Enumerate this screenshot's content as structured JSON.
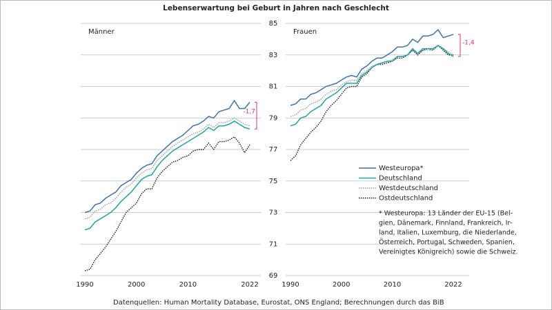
{
  "title": "Lebenserwartung bei Geburt in Jahren nach Geschlecht",
  "source": "Datenquellen: Human Mortality Database, Eurostat, ONS England; Berechnungen durch das BiB",
  "footnote": [
    "* Westeuropa: 13 Länder der EU-15 (Bel-",
    "gien, Dänemark, Finnland, Frankreich, Ir-",
    "land, Italien, Luxemburg, die Niederlande,",
    "Österreich, Portugal, Schweden, Spanien,",
    "Vereinigtes Königreich) sowie die Schweiz."
  ],
  "chart_data": [
    {
      "type": "line",
      "title": "Männer",
      "annotation": "-1,7",
      "x": [
        1990,
        1991,
        1992,
        1993,
        1994,
        1995,
        1996,
        1997,
        1998,
        1999,
        2000,
        2001,
        2002,
        2003,
        2004,
        2005,
        2006,
        2007,
        2008,
        2009,
        2010,
        2011,
        2012,
        2013,
        2014,
        2015,
        2016,
        2017,
        2018,
        2019,
        2020,
        2021,
        2022
      ],
      "xlim": [
        1990,
        2022
      ],
      "xticks": [
        1990,
        2000,
        2010,
        2022
      ],
      "ylim": [
        69,
        85
      ],
      "yticks": [
        69,
        71,
        73,
        75,
        77,
        79,
        81,
        83,
        85
      ],
      "grid": true,
      "series": [
        {
          "name": "Westeuropa*",
          "color": "#3d72a4",
          "style": "solid",
          "values": [
            73.0,
            73.1,
            73.5,
            73.6,
            73.9,
            74.1,
            74.3,
            74.7,
            74.9,
            75.1,
            75.5,
            75.8,
            76.0,
            76.1,
            76.6,
            76.9,
            77.2,
            77.5,
            77.7,
            77.9,
            78.2,
            78.5,
            78.6,
            78.8,
            79.1,
            79.0,
            79.4,
            79.5,
            79.6,
            80.1,
            79.6,
            79.6,
            80.0
          ]
        },
        {
          "name": "Deutschland",
          "color": "#1aa3a8",
          "style": "solid",
          "values": [
            71.9,
            72.0,
            72.4,
            72.6,
            72.8,
            73.0,
            73.3,
            73.7,
            74.0,
            74.3,
            74.7,
            75.1,
            75.3,
            75.4,
            75.9,
            76.3,
            76.6,
            76.9,
            77.1,
            77.3,
            77.5,
            77.7,
            77.9,
            78.1,
            78.4,
            78.2,
            78.5,
            78.5,
            78.6,
            78.8,
            78.6,
            78.4,
            78.3
          ]
        },
        {
          "name": "Westdeutschland",
          "color": "#9a9a9a",
          "style": "dotted",
          "values": [
            72.6,
            72.7,
            73.1,
            73.2,
            73.5,
            73.6,
            73.9,
            74.3,
            74.6,
            74.8,
            75.2,
            75.5,
            75.7,
            75.8,
            76.3,
            76.6,
            76.9,
            77.2,
            77.4,
            77.6,
            77.8,
            78.0,
            78.1,
            78.3,
            78.6,
            78.4,
            78.7,
            78.7,
            78.8,
            79.0,
            78.8,
            78.6,
            78.5
          ]
        },
        {
          "name": "Ostdeutschland",
          "color": "#111111",
          "style": "dotted",
          "values": [
            69.3,
            69.4,
            70.0,
            70.4,
            70.8,
            71.3,
            71.8,
            72.4,
            73.0,
            73.3,
            73.6,
            74.2,
            74.5,
            74.5,
            75.2,
            75.6,
            75.9,
            76.2,
            76.3,
            76.5,
            76.6,
            76.9,
            77.0,
            77.0,
            77.4,
            77.0,
            77.5,
            77.5,
            77.6,
            77.8,
            77.4,
            76.8,
            77.3
          ]
        }
      ]
    },
    {
      "type": "line",
      "title": "Frauen",
      "annotation": "-1,4",
      "x": [
        1990,
        1991,
        1992,
        1993,
        1994,
        1995,
        1996,
        1997,
        1998,
        1999,
        2000,
        2001,
        2002,
        2003,
        2004,
        2005,
        2006,
        2007,
        2008,
        2009,
        2010,
        2011,
        2012,
        2013,
        2014,
        2015,
        2016,
        2017,
        2018,
        2019,
        2020,
        2021,
        2022
      ],
      "xlim": [
        1990,
        2022
      ],
      "xticks": [
        1990,
        2000,
        2010,
        2022
      ],
      "ylim": [
        69,
        85
      ],
      "yticks": [
        69,
        71,
        73,
        75,
        77,
        79,
        81,
        83,
        85
      ],
      "grid": true,
      "series": [
        {
          "name": "Westeuropa*",
          "color": "#3d72a4",
          "style": "solid",
          "values": [
            79.8,
            79.9,
            80.2,
            80.2,
            80.5,
            80.6,
            80.8,
            81.0,
            81.1,
            81.2,
            81.4,
            81.6,
            81.7,
            81.6,
            82.1,
            82.3,
            82.6,
            82.8,
            82.8,
            83.0,
            83.2,
            83.5,
            83.5,
            83.6,
            84.0,
            83.8,
            84.2,
            84.2,
            84.3,
            84.6,
            84.1,
            84.2,
            84.3
          ]
        },
        {
          "name": "Deutschland",
          "color": "#1aa3a8",
          "style": "solid",
          "values": [
            78.5,
            78.6,
            79.0,
            79.1,
            79.4,
            79.6,
            79.8,
            80.2,
            80.4,
            80.6,
            80.9,
            81.2,
            81.2,
            81.2,
            81.7,
            81.9,
            82.2,
            82.4,
            82.5,
            82.6,
            82.6,
            82.9,
            82.9,
            83.0,
            83.4,
            83.1,
            83.4,
            83.4,
            83.4,
            83.6,
            83.4,
            83.1,
            82.9
          ]
        },
        {
          "name": "Westdeutschland",
          "color": "#9a9a9a",
          "style": "dotted",
          "values": [
            79.1,
            79.2,
            79.5,
            79.6,
            79.9,
            80.0,
            80.2,
            80.5,
            80.7,
            80.8,
            81.1,
            81.3,
            81.4,
            81.4,
            81.8,
            82.0,
            82.3,
            82.4,
            82.5,
            82.6,
            82.7,
            82.9,
            82.9,
            83.0,
            83.3,
            83.1,
            83.3,
            83.3,
            83.3,
            83.6,
            83.4,
            83.2,
            83.0
          ]
        },
        {
          "name": "Ostdeutschland",
          "color": "#111111",
          "style": "dotted",
          "values": [
            76.3,
            76.6,
            77.3,
            77.7,
            78.1,
            78.4,
            78.8,
            79.4,
            79.8,
            80.1,
            80.5,
            80.9,
            81.0,
            81.0,
            81.6,
            81.8,
            82.2,
            82.4,
            82.4,
            82.5,
            82.6,
            82.8,
            82.8,
            83.0,
            83.3,
            83.0,
            83.3,
            83.4,
            83.3,
            83.6,
            83.3,
            83.0,
            83.0
          ]
        }
      ]
    }
  ]
}
